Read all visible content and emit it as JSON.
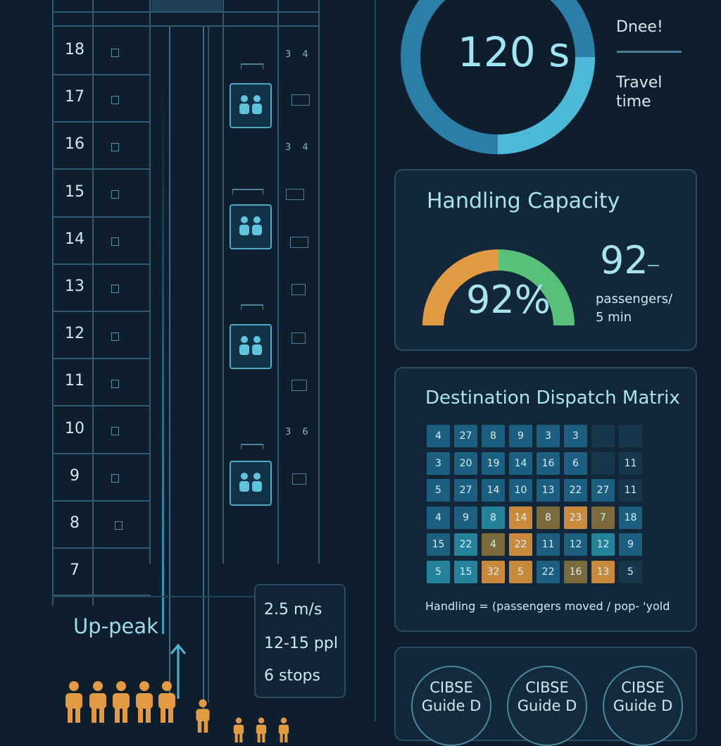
{
  "floors": [
    "18",
    "17",
    "16",
    "15",
    "14",
    "13",
    "12",
    "11",
    "10",
    "9",
    "8",
    "7"
  ],
  "right_notes": {
    "n18": "3 4",
    "n16": "3 4",
    "n10": "3 6"
  },
  "uppeak": {
    "label": "Up-peak"
  },
  "spec": {
    "speed": "2.5 m/s",
    "capacity": "12-15 ppl",
    "stops": "6 stops"
  },
  "travel": {
    "value": "120 s",
    "top_label": "Dnee!",
    "label_line1": "Travel",
    "label_line2": "time"
  },
  "handling": {
    "title": "Handling Capacity",
    "percent": "92%",
    "percent_value": 0.92,
    "value": "92",
    "unit_line1": "passengers/",
    "unit_line2": "5 min",
    "color_left": "#e39b43",
    "color_right": "#59c07a"
  },
  "matrix": {
    "title": "Destination Dispatch Matrix",
    "rows": [
      [
        "4",
        "27",
        "8",
        "9",
        "3",
        "3",
        "",
        ""
      ],
      [
        "3",
        "20",
        "19",
        "14",
        "16",
        "6",
        "",
        "11"
      ],
      [
        "5",
        "27",
        "14",
        "10",
        "13",
        "22",
        "27",
        "11"
      ],
      [
        "4",
        "9",
        "8",
        "14",
        "8",
        "23",
        "7",
        "18"
      ],
      [
        "15",
        "22",
        "4",
        "22",
        "11",
        "12",
        "12",
        "9"
      ],
      [
        "5",
        "15",
        "32",
        "5",
        "22",
        "16",
        "13",
        "5"
      ]
    ],
    "colors": [
      [
        "b",
        "b",
        "b",
        "b",
        "b",
        "b",
        "d",
        "d"
      ],
      [
        "b",
        "b",
        "b",
        "b",
        "b",
        "b",
        "d",
        "d"
      ],
      [
        "b",
        "b",
        "b",
        "b",
        "b",
        "b",
        "b",
        "d"
      ],
      [
        "b",
        "b",
        "t",
        "o",
        "m",
        "o",
        "m",
        "b"
      ],
      [
        "b",
        "t",
        "m",
        "o",
        "b",
        "b",
        "t",
        "b"
      ],
      [
        "t",
        "t",
        "o",
        "o",
        "b",
        "m",
        "o",
        "d"
      ]
    ],
    "palette": {
      "b": "#1d5f80",
      "t": "#24829b",
      "o": "#c98a3e",
      "m": "#7b6b3c",
      "d": "#17384c"
    },
    "formula": "Handling = (passengers moved / pop- 'yold"
  },
  "badges": [
    {
      "line1": "CIBSE",
      "line2": "Guide D"
    },
    {
      "line1": "CIBSE",
      "line2": "Guide D"
    },
    {
      "line1": "CIBSE",
      "line2": "Guide D"
    }
  ]
}
